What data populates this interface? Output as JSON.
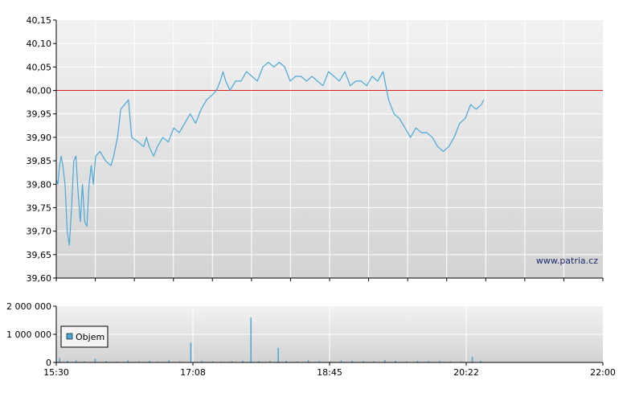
{
  "chart_data": [
    {
      "type": "line",
      "title": "",
      "xlabel": "",
      "ylabel": "",
      "x_categories": [
        "15:30",
        "17:08",
        "18:45",
        "20:22",
        "22:00"
      ],
      "ylim": [
        39.6,
        40.15
      ],
      "yticks": [
        "40,15",
        "40,10",
        "40,05",
        "40,00",
        "39,95",
        "39,90",
        "39,85",
        "39,80",
        "39,75",
        "39,70",
        "39,65",
        "39,60"
      ],
      "reference_line": 40.0,
      "grid": true,
      "watermark": "www.patria.cz",
      "series": [
        {
          "color": "#4aa8d8",
          "points": [
            [
              0.0,
              39.81
            ],
            [
              0.003,
              39.8
            ],
            [
              0.006,
              39.84
            ],
            [
              0.009,
              39.86
            ],
            [
              0.012,
              39.84
            ],
            [
              0.016,
              39.8
            ],
            [
              0.02,
              39.7
            ],
            [
              0.024,
              39.67
            ],
            [
              0.028,
              39.75
            ],
            [
              0.032,
              39.85
            ],
            [
              0.036,
              39.86
            ],
            [
              0.04,
              39.78
            ],
            [
              0.044,
              39.72
            ],
            [
              0.048,
              39.8
            ],
            [
              0.052,
              39.72
            ],
            [
              0.056,
              39.71
            ],
            [
              0.06,
              39.8
            ],
            [
              0.064,
              39.84
            ],
            [
              0.068,
              39.8
            ],
            [
              0.072,
              39.86
            ],
            [
              0.08,
              39.87
            ],
            [
              0.09,
              39.85
            ],
            [
              0.1,
              39.84
            ],
            [
              0.105,
              39.86
            ],
            [
              0.112,
              39.9
            ],
            [
              0.118,
              39.96
            ],
            [
              0.125,
              39.97
            ],
            [
              0.132,
              39.98
            ],
            [
              0.138,
              39.9
            ],
            [
              0.15,
              39.89
            ],
            [
              0.16,
              39.88
            ],
            [
              0.165,
              39.9
            ],
            [
              0.17,
              39.88
            ],
            [
              0.178,
              39.86
            ],
            [
              0.185,
              39.88
            ],
            [
              0.195,
              39.9
            ],
            [
              0.205,
              39.89
            ],
            [
              0.215,
              39.92
            ],
            [
              0.225,
              39.91
            ],
            [
              0.235,
              39.93
            ],
            [
              0.245,
              39.95
            ],
            [
              0.255,
              39.93
            ],
            [
              0.265,
              39.96
            ],
            [
              0.275,
              39.98
            ],
            [
              0.285,
              39.99
            ],
            [
              0.293,
              40.0
            ],
            [
              0.3,
              40.02
            ],
            [
              0.305,
              40.04
            ],
            [
              0.31,
              40.02
            ],
            [
              0.318,
              40.0
            ],
            [
              0.328,
              40.02
            ],
            [
              0.338,
              40.02
            ],
            [
              0.348,
              40.04
            ],
            [
              0.358,
              40.03
            ],
            [
              0.368,
              40.02
            ],
            [
              0.378,
              40.05
            ],
            [
              0.388,
              40.06
            ],
            [
              0.398,
              40.05
            ],
            [
              0.408,
              40.06
            ],
            [
              0.418,
              40.05
            ],
            [
              0.428,
              40.02
            ],
            [
              0.438,
              40.03
            ],
            [
              0.448,
              40.03
            ],
            [
              0.458,
              40.02
            ],
            [
              0.468,
              40.03
            ],
            [
              0.478,
              40.02
            ],
            [
              0.488,
              40.01
            ],
            [
              0.498,
              40.04
            ],
            [
              0.508,
              40.03
            ],
            [
              0.518,
              40.02
            ],
            [
              0.528,
              40.04
            ],
            [
              0.538,
              40.01
            ],
            [
              0.548,
              40.02
            ],
            [
              0.558,
              40.02
            ],
            [
              0.568,
              40.01
            ],
            [
              0.578,
              40.03
            ],
            [
              0.588,
              40.02
            ],
            [
              0.598,
              40.04
            ],
            [
              0.608,
              39.98
            ],
            [
              0.618,
              39.95
            ],
            [
              0.628,
              39.94
            ],
            [
              0.638,
              39.92
            ],
            [
              0.648,
              39.9
            ],
            [
              0.658,
              39.92
            ],
            [
              0.668,
              39.91
            ],
            [
              0.678,
              39.91
            ],
            [
              0.688,
              39.9
            ],
            [
              0.698,
              39.88
            ],
            [
              0.708,
              39.87
            ],
            [
              0.718,
              39.88
            ],
            [
              0.728,
              39.9
            ],
            [
              0.738,
              39.93
            ],
            [
              0.748,
              39.94
            ],
            [
              0.758,
              39.97
            ],
            [
              0.768,
              39.96
            ],
            [
              0.778,
              39.97
            ],
            [
              0.782,
              39.98
            ]
          ]
        }
      ]
    },
    {
      "type": "bar",
      "title": "",
      "xlabel": "",
      "ylabel": "",
      "x_categories": [
        "15:30",
        "17:08",
        "18:45",
        "20:22",
        "22:00"
      ],
      "ylim": [
        0,
        2000000
      ],
      "yticks": [
        "2 000 000",
        "1 000 000",
        "0"
      ],
      "grid": true,
      "legend": {
        "placement": "left",
        "label": "Objem"
      },
      "series": [
        {
          "name": "Objem",
          "color": "#4aa8d8",
          "points": [
            [
              0.005,
              160000
            ],
            [
              0.02,
              60000
            ],
            [
              0.035,
              80000
            ],
            [
              0.05,
              40000
            ],
            [
              0.07,
              140000
            ],
            [
              0.09,
              50000
            ],
            [
              0.11,
              30000
            ],
            [
              0.13,
              70000
            ],
            [
              0.15,
              40000
            ],
            [
              0.17,
              60000
            ],
            [
              0.185,
              30000
            ],
            [
              0.205,
              80000
            ],
            [
              0.225,
              40000
            ],
            [
              0.245,
              700000
            ],
            [
              0.265,
              60000
            ],
            [
              0.285,
              40000
            ],
            [
              0.3,
              30000
            ],
            [
              0.32,
              50000
            ],
            [
              0.34,
              60000
            ],
            [
              0.355,
              1600000
            ],
            [
              0.37,
              50000
            ],
            [
              0.39,
              60000
            ],
            [
              0.405,
              520000
            ],
            [
              0.42,
              60000
            ],
            [
              0.44,
              40000
            ],
            [
              0.46,
              80000
            ],
            [
              0.48,
              50000
            ],
            [
              0.5,
              40000
            ],
            [
              0.52,
              70000
            ],
            [
              0.54,
              60000
            ],
            [
              0.56,
              50000
            ],
            [
              0.58,
              40000
            ],
            [
              0.6,
              90000
            ],
            [
              0.62,
              60000
            ],
            [
              0.64,
              40000
            ],
            [
              0.66,
              60000
            ],
            [
              0.68,
              50000
            ],
            [
              0.7,
              60000
            ],
            [
              0.72,
              40000
            ],
            [
              0.74,
              40000
            ],
            [
              0.76,
              200000
            ],
            [
              0.775,
              60000
            ]
          ]
        }
      ]
    }
  ]
}
